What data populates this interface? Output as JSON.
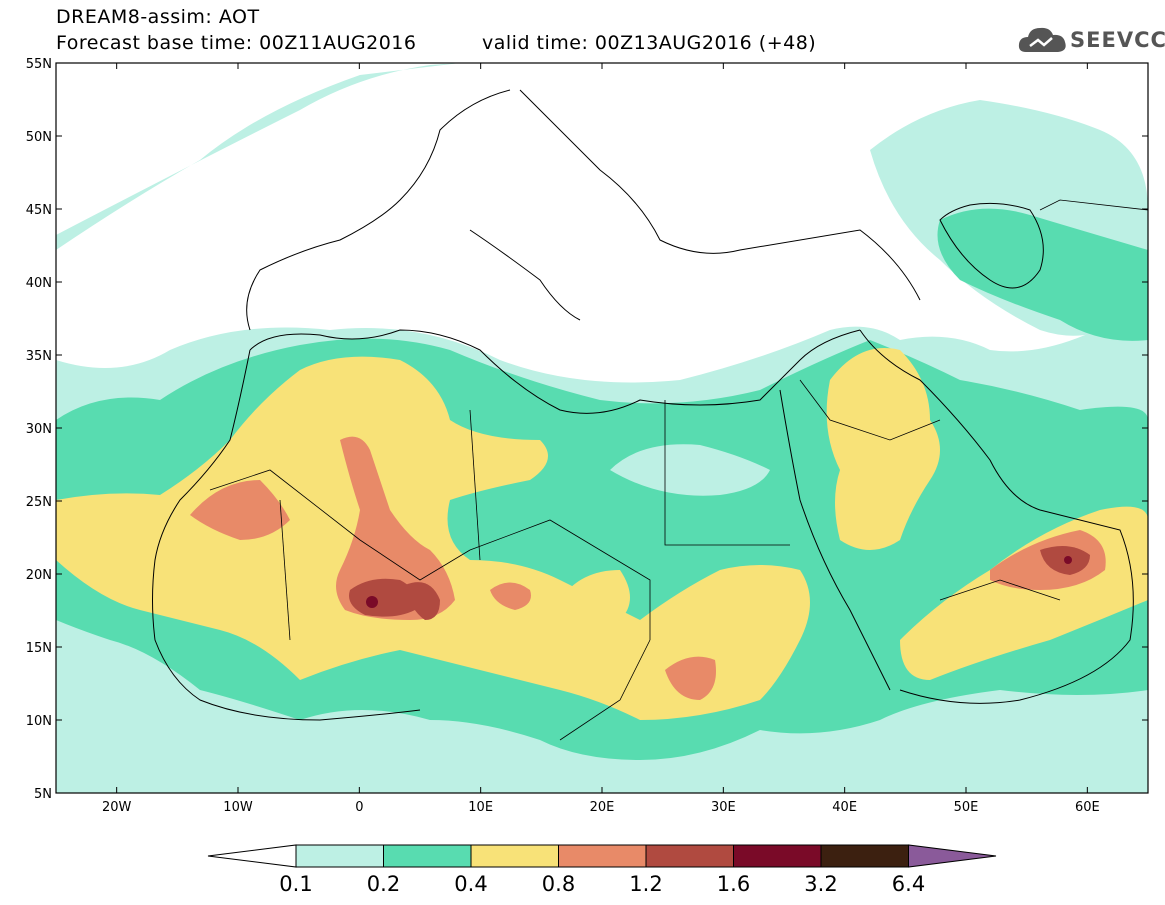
{
  "header": {
    "model_title": "DREAM8-assim: AOT",
    "base_time": "Forecast base time: 00Z11AUG2016",
    "valid_time": "valid time: 00Z13AUG2016 (+48)",
    "logo_text": "SEEVCCC",
    "logo_icon": "cloud-icon"
  },
  "map": {
    "lat_labels": [
      "55N",
      "50N",
      "45N",
      "40N",
      "35N",
      "30N",
      "25N",
      "20N",
      "15N",
      "10N",
      "5N"
    ],
    "lon_labels": [
      "20W",
      "10W",
      "0",
      "10E",
      "20E",
      "30E",
      "40E",
      "50E",
      "60E"
    ],
    "extent": {
      "lon": [
        -25,
        65
      ],
      "lat": [
        5,
        55
      ]
    }
  },
  "colorbar": {
    "colors": [
      "#ffffff",
      "#bdf0e4",
      "#58dcb0",
      "#f8e278",
      "#e88a68",
      "#b04a40",
      "#7a0a28",
      "#3c2010",
      "#8a5a9a"
    ],
    "labels": [
      "0.1",
      "0.2",
      "0.4",
      "0.8",
      "1.2",
      "1.6",
      "3.2",
      "6.4"
    ]
  }
}
